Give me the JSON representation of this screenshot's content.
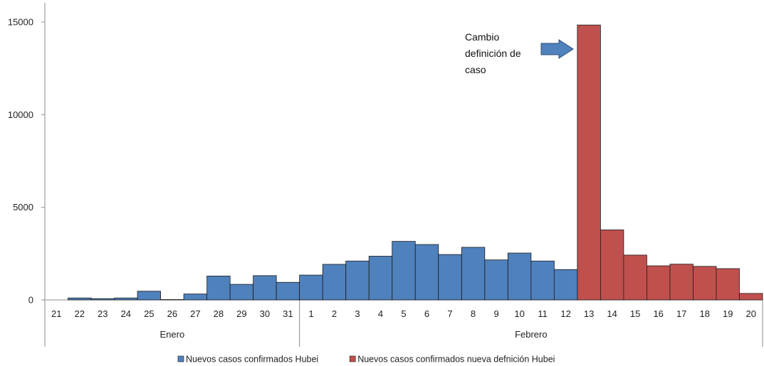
{
  "chart_data": {
    "type": "bar",
    "groups": [
      {
        "label": "Enero",
        "categories": [
          "21",
          "22",
          "23",
          "24",
          "25",
          "26",
          "27",
          "28",
          "29",
          "30",
          "31"
        ]
      },
      {
        "label": "Febrero",
        "categories": [
          "1",
          "2",
          "3",
          "4",
          "5",
          "6",
          "7",
          "8",
          "9",
          "10",
          "11",
          "12",
          "13",
          "14",
          "15",
          "16",
          "17",
          "18",
          "19",
          "20"
        ]
      }
    ],
    "categories": [
      "21",
      "22",
      "23",
      "24",
      "25",
      "26",
      "27",
      "28",
      "29",
      "30",
      "31",
      "1",
      "2",
      "3",
      "4",
      "5",
      "6",
      "7",
      "8",
      "9",
      "10",
      "11",
      "12",
      "13",
      "14",
      "15",
      "16",
      "17",
      "18",
      "19",
      "20"
    ],
    "series": [
      {
        "name": "Nuevos casos confirmados Hubei",
        "color": "#4f81bd",
        "values": [
          0,
          105,
          70,
          105,
          470,
          20,
          320,
          1290,
          840,
          1310,
          950,
          1340,
          1920,
          2100,
          2360,
          3160,
          2990,
          2450,
          2840,
          2160,
          2530,
          2100,
          1640,
          null,
          null,
          null,
          null,
          null,
          null,
          null,
          null
        ]
      },
      {
        "name": "Nuevos casos confirmados nueva defnición Hubei",
        "color": "#c0504d",
        "values": [
          null,
          null,
          null,
          null,
          null,
          null,
          null,
          null,
          null,
          null,
          null,
          null,
          null,
          null,
          null,
          null,
          null,
          null,
          null,
          null,
          null,
          null,
          null,
          14840,
          3780,
          2420,
          1840,
          1930,
          1810,
          1690,
          350
        ]
      }
    ],
    "yticks": [
      "0",
      "5000",
      "10000",
      "15000"
    ],
    "ylim": [
      0,
      16000
    ],
    "annotation": {
      "lines": [
        "Cambio",
        "definición de",
        "caso"
      ],
      "arrow_color": "#4f81bd",
      "points_to": "13"
    },
    "legend_position": "bottom",
    "grid": false
  }
}
